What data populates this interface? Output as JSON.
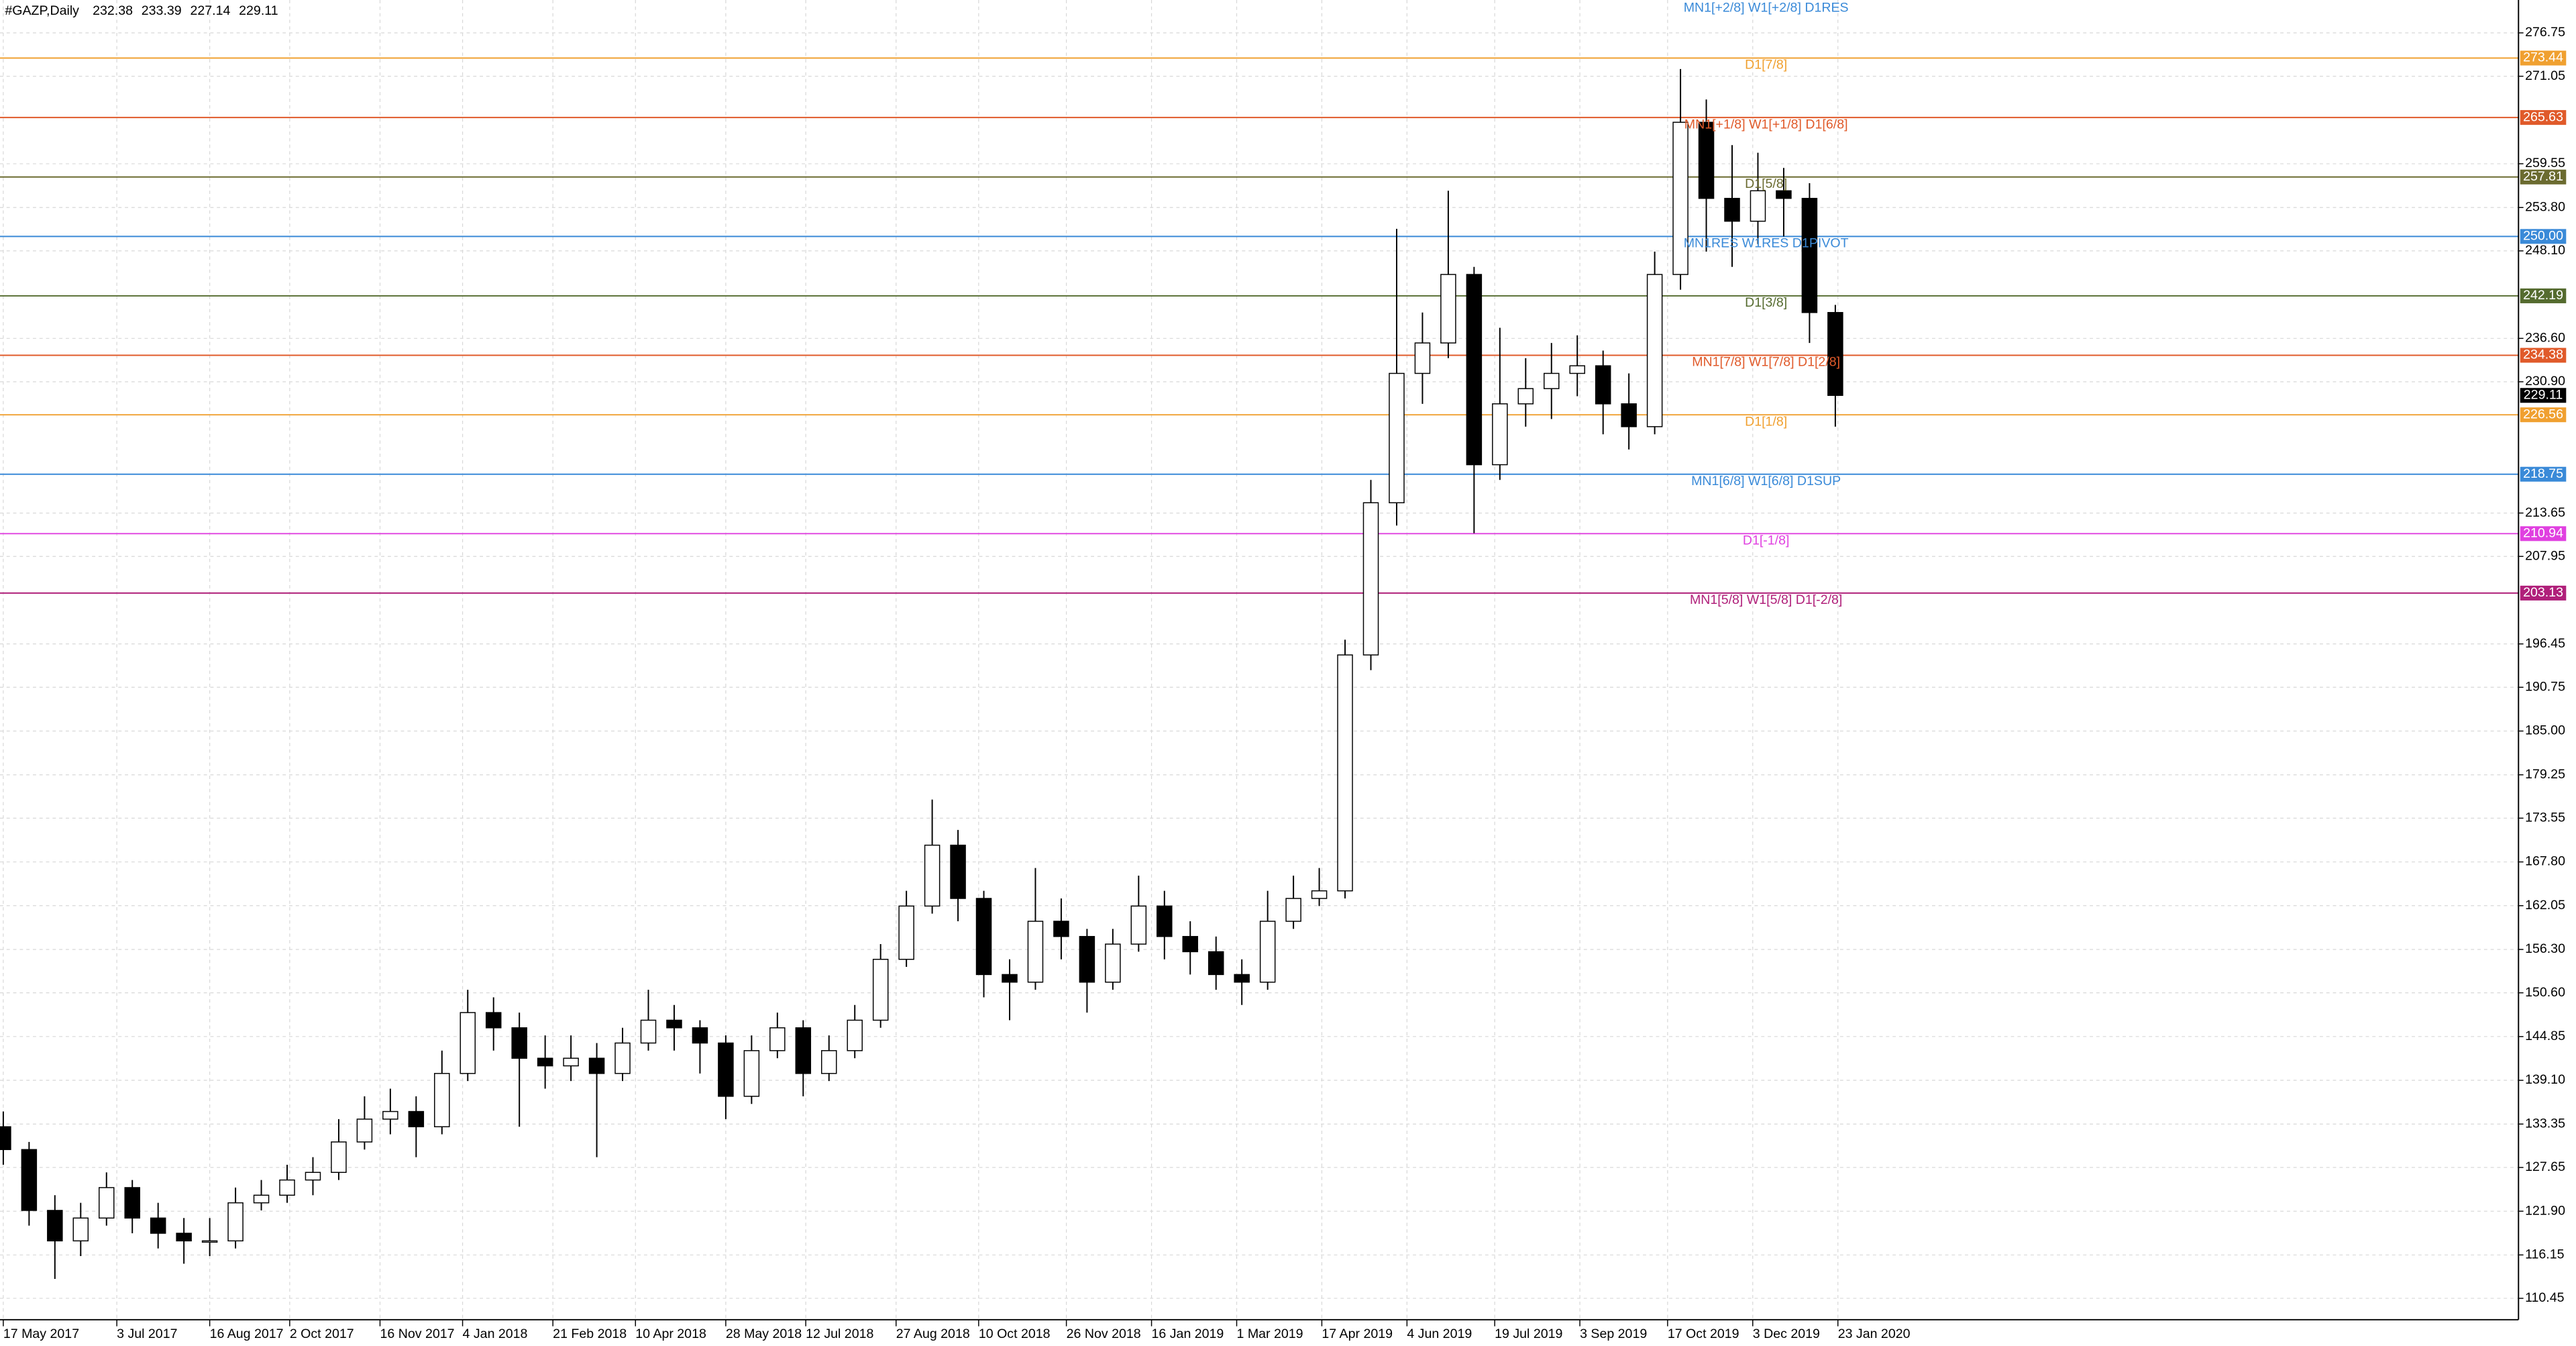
{
  "chart_data": {
    "type": "candlestick",
    "title": "#GAZP,Daily",
    "header_ohlc": [
      232.38,
      233.39,
      227.14,
      229.11
    ],
    "open": [
      133,
      130,
      122,
      118,
      121,
      125,
      121,
      119,
      118,
      118,
      123,
      124,
      126,
      127,
      131,
      134,
      135,
      133,
      140,
      148,
      146,
      142,
      141,
      142,
      140,
      144,
      147,
      146,
      144,
      137,
      143,
      146,
      140,
      143,
      147,
      155,
      162,
      170,
      163,
      153,
      152,
      160,
      158,
      152,
      157,
      162,
      158,
      156,
      153,
      152,
      160,
      163,
      164,
      195,
      215,
      232,
      236,
      245,
      220,
      228,
      230,
      232,
      233,
      228,
      225,
      245,
      265,
      255,
      252,
      256,
      255,
      240
    ],
    "high": [
      135,
      131,
      124,
      123,
      127,
      126,
      123,
      121,
      121,
      125,
      126,
      128,
      129,
      134,
      137,
      138,
      137,
      143,
      151,
      150,
      148,
      145,
      145,
      144,
      146,
      151,
      149,
      147,
      145,
      145,
      148,
      147,
      145,
      149,
      157,
      164,
      176,
      172,
      164,
      155,
      167,
      163,
      159,
      159,
      166,
      164,
      160,
      158,
      155,
      164,
      166,
      167,
      197,
      218,
      251,
      240,
      256,
      246,
      238,
      234,
      236,
      237,
      235,
      232,
      248,
      272,
      268,
      262,
      261,
      259,
      257,
      241
    ],
    "low": [
      128,
      120,
      113,
      116,
      120,
      119,
      117,
      115,
      116,
      117,
      122,
      123,
      124,
      126,
      130,
      132,
      129,
      132,
      139,
      143,
      133,
      138,
      139,
      129,
      139,
      143,
      143,
      140,
      134,
      136,
      142,
      137,
      139,
      142,
      146,
      154,
      161,
      160,
      150,
      147,
      151,
      155,
      148,
      151,
      156,
      155,
      153,
      151,
      149,
      151,
      159,
      162,
      163,
      193,
      212,
      228,
      234,
      211,
      218,
      225,
      226,
      229,
      224,
      222,
      224,
      243,
      248,
      246,
      249,
      250,
      236,
      225
    ],
    "close": [
      130,
      122,
      118,
      121,
      125,
      121,
      119,
      118,
      118,
      123,
      124,
      126,
      127,
      131,
      134,
      135,
      133,
      140,
      148,
      146,
      142,
      141,
      142,
      140,
      144,
      147,
      146,
      144,
      137,
      143,
      146,
      140,
      143,
      147,
      155,
      162,
      170,
      163,
      153,
      152,
      160,
      158,
      152,
      157,
      162,
      158,
      156,
      153,
      152,
      160,
      163,
      164,
      195,
      215,
      232,
      236,
      245,
      220,
      228,
      230,
      232,
      233,
      228,
      225,
      245,
      265,
      255,
      252,
      256,
      255,
      240,
      229.11
    ],
    "xlim": [
      0,
      71.5
    ],
    "xticks": [
      {
        "value": 0,
        "label": "17 May 2017"
      },
      {
        "value": 4.4,
        "label": "3 Jul 2017"
      },
      {
        "value": 8.0,
        "label": "16 Aug 2017"
      },
      {
        "value": 11.1,
        "label": "2 Oct 2017"
      },
      {
        "value": 14.6,
        "label": "16 Nov 2017"
      },
      {
        "value": 17.8,
        "label": "4 Jan 2018"
      },
      {
        "value": 21.3,
        "label": "21 Feb 2018"
      },
      {
        "value": 24.5,
        "label": "10 Apr 2018"
      },
      {
        "value": 28.0,
        "label": "28 May 2018"
      },
      {
        "value": 31.1,
        "label": "12 Jul 2018"
      },
      {
        "value": 34.6,
        "label": "27 Aug 2018"
      },
      {
        "value": 37.8,
        "label": "10 Oct 2018"
      },
      {
        "value": 41.2,
        "label": "26 Nov 2018"
      },
      {
        "value": 44.5,
        "label": "16 Jan 2019"
      },
      {
        "value": 47.8,
        "label": "1 Mar 2019"
      },
      {
        "value": 51.1,
        "label": "17 Apr 2019"
      },
      {
        "value": 54.4,
        "label": "4 Jun 2019"
      },
      {
        "value": 57.8,
        "label": "19 Jul 2019"
      },
      {
        "value": 61.1,
        "label": "3 Sep 2019"
      },
      {
        "value": 64.5,
        "label": "17 Oct 2019"
      },
      {
        "value": 67.8,
        "label": "3 Dec 2019"
      },
      {
        "value": 71.1,
        "label": "23 Jan 2020"
      }
    ],
    "ylim": [
      107.64,
      281.07
    ],
    "yticks": [
      {
        "value": 276.75,
        "label": "276.75"
      },
      {
        "value": 271.05,
        "label": "271.05"
      },
      {
        "value": 259.55,
        "label": "259.55"
      },
      {
        "value": 253.8,
        "label": "253.80"
      },
      {
        "value": 248.1,
        "label": "248.10"
      },
      {
        "value": 236.6,
        "label": "236.60"
      },
      {
        "value": 230.9,
        "label": "230.90"
      },
      {
        "value": 213.65,
        "label": "213.65"
      },
      {
        "value": 207.95,
        "label": "207.95"
      },
      {
        "value": 196.45,
        "label": "196.45"
      },
      {
        "value": 190.75,
        "label": "190.75"
      },
      {
        "value": 185,
        "label": "185.00"
      },
      {
        "value": 179.25,
        "label": "179.25"
      },
      {
        "value": 173.55,
        "label": "173.55"
      },
      {
        "value": 167.8,
        "label": "167.80"
      },
      {
        "value": 162.05,
        "label": "162.05"
      },
      {
        "value": 156.3,
        "label": "156.30"
      },
      {
        "value": 150.6,
        "label": "150.60"
      },
      {
        "value": 144.85,
        "label": "144.85"
      },
      {
        "value": 139.1,
        "label": "139.10"
      },
      {
        "value": 133.35,
        "label": "133.35"
      },
      {
        "value": 127.65,
        "label": "127.65"
      },
      {
        "value": 121.9,
        "label": "121.90"
      },
      {
        "value": 116.15,
        "label": "116.15"
      },
      {
        "value": 110.45,
        "label": "110.45"
      }
    ],
    "grid": true,
    "top_annotation": {
      "text": "MN1[+2/8] W1[+2/8] D1RES",
      "color": "#3a8ad8"
    },
    "levels": [
      {
        "value": 273.44,
        "value_label": "273.44",
        "label": "D1[7/8]",
        "color": "#f0a030"
      },
      {
        "value": 265.63,
        "value_label": "265.63",
        "label": "MN1[+1/8] W1[+1/8] D1[6/8]",
        "color": "#e05a2a"
      },
      {
        "value": 257.81,
        "value_label": "257.81",
        "label": "D1[5/8]",
        "color": "#6b6b30"
      },
      {
        "value": 250.0,
        "value_label": "250.00",
        "label": "MN1RES W1RES D1PIVOT",
        "color": "#3a8ad8"
      },
      {
        "value": 242.19,
        "value_label": "242.19",
        "label": "D1[3/8]",
        "color": "#556b2f"
      },
      {
        "value": 234.38,
        "value_label": "234.38",
        "label": "MN1[7/8] W1[7/8] D1[2/8]",
        "color": "#e05a2a"
      },
      {
        "value": 226.56,
        "value_label": "226.56",
        "label": "D1[1/8]",
        "color": "#f0a030"
      },
      {
        "value": 218.75,
        "value_label": "218.75",
        "label": "MN1[6/8] W1[6/8] D1SUP",
        "color": "#3a8ad8"
      },
      {
        "value": 210.94,
        "value_label": "210.94",
        "label": "D1[-1/8]",
        "color": "#e040e0"
      },
      {
        "value": 203.13,
        "value_label": "203.13",
        "label": "MN1[5/8] W1[5/8] D1[-2/8]",
        "color": "#b0207a"
      }
    ],
    "current_price": 229.11
  }
}
